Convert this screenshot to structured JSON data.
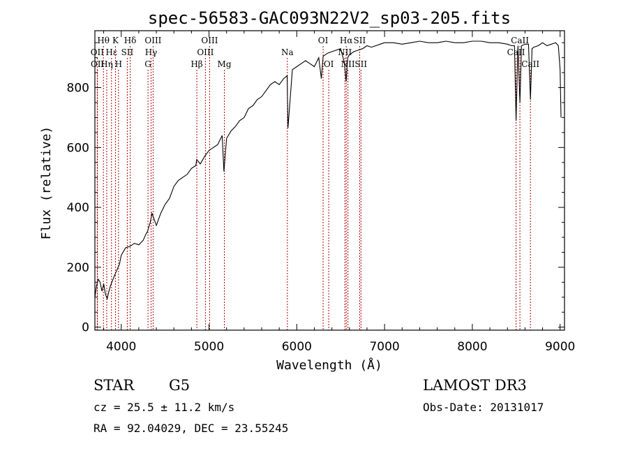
{
  "chart_data": {
    "type": "line",
    "title": "spec-56583-GAC093N22V2_sp03-205.fits",
    "xlabel": "Wavelength (Å)",
    "ylabel": "Flux (relative)",
    "xlim": [
      3700,
      9050
    ],
    "ylim": [
      -10,
      990
    ],
    "x_ticks": [
      {
        "value": 4000,
        "label": "4000"
      },
      {
        "value": 5000,
        "label": "5000"
      },
      {
        "value": 6000,
        "label": "6000"
      },
      {
        "value": 7000,
        "label": "7000"
      },
      {
        "value": 8000,
        "label": "8000"
      },
      {
        "value": 9000,
        "label": "9000"
      }
    ],
    "y_ticks": [
      {
        "value": 0,
        "label": "0"
      },
      {
        "value": 200,
        "label": "200"
      },
      {
        "value": 400,
        "label": "400"
      },
      {
        "value": 600,
        "label": "600"
      },
      {
        "value": 800,
        "label": "800"
      }
    ],
    "spectrum": {
      "x": [
        3700,
        3720,
        3740,
        3760,
        3780,
        3800,
        3820,
        3840,
        3860,
        3880,
        3900,
        3920,
        3950,
        3980,
        4000,
        4050,
        4100,
        4150,
        4200,
        4250,
        4280,
        4300,
        4330,
        4350,
        4400,
        4450,
        4500,
        4550,
        4600,
        4650,
        4700,
        4750,
        4800,
        4850,
        4860,
        4900,
        4950,
        5000,
        5050,
        5100,
        5150,
        5170,
        5200,
        5250,
        5300,
        5350,
        5400,
        5450,
        5500,
        5550,
        5600,
        5650,
        5700,
        5750,
        5800,
        5850,
        5890,
        5900,
        5950,
        6000,
        6050,
        6100,
        6150,
        6200,
        6250,
        6280,
        6300,
        6350,
        6400,
        6450,
        6500,
        6540,
        6563,
        6580,
        6600,
        6650,
        6700,
        6750,
        6800,
        6850,
        6900,
        6950,
        7000,
        7100,
        7200,
        7300,
        7400,
        7500,
        7600,
        7700,
        7800,
        7900,
        8000,
        8100,
        8200,
        8300,
        8400,
        8450,
        8480,
        8498,
        8520,
        8542,
        8560,
        8600,
        8640,
        8662,
        8680,
        8700,
        8750,
        8800,
        8850,
        8900,
        8950,
        8980,
        9000,
        9010
      ],
      "y": [
        100,
        140,
        160,
        150,
        120,
        145,
        110,
        95,
        120,
        140,
        155,
        170,
        190,
        210,
        240,
        265,
        270,
        280,
        275,
        290,
        310,
        320,
        350,
        380,
        340,
        380,
        410,
        430,
        470,
        490,
        500,
        510,
        530,
        540,
        560,
        545,
        570,
        590,
        600,
        610,
        640,
        520,
        630,
        655,
        670,
        690,
        700,
        730,
        740,
        760,
        770,
        790,
        810,
        820,
        810,
        830,
        840,
        665,
        860,
        870,
        880,
        890,
        880,
        870,
        900,
        830,
        905,
        915,
        920,
        925,
        930,
        885,
        820,
        900,
        910,
        920,
        925,
        930,
        940,
        935,
        940,
        945,
        950,
        950,
        945,
        950,
        955,
        950,
        950,
        955,
        950,
        950,
        955,
        955,
        950,
        950,
        945,
        940,
        940,
        690,
        940,
        750,
        940,
        945,
        945,
        760,
        930,
        935,
        940,
        950,
        940,
        945,
        950,
        940,
        860,
        700
      ]
    },
    "lines": [
      {
        "label": "Hθ",
        "x": 3797,
        "row": 1
      },
      {
        "label": "OII",
        "x": 3727,
        "row": 2
      },
      {
        "label": "OII",
        "x": 3729,
        "row": 3
      },
      {
        "label": "Hε",
        "x": 3889,
        "row": 2
      },
      {
        "label": "Hη",
        "x": 3835,
        "row": 3
      },
      {
        "label": "K",
        "x": 3934,
        "row": 1
      },
      {
        "label": "H",
        "x": 3969,
        "row": 3
      },
      {
        "label": "SII",
        "x": 4069,
        "row": 2
      },
      {
        "label": "Hδ",
        "x": 4102,
        "row": 1
      },
      {
        "label": "OIII",
        "x": 4363,
        "row": 1
      },
      {
        "label": "Hγ",
        "x": 4340,
        "row": 2
      },
      {
        "label": "G",
        "x": 4305,
        "row": 3
      },
      {
        "label": "Hβ",
        "x": 4861,
        "row": 3
      },
      {
        "label": "OIII",
        "x": 5007,
        "row": 1
      },
      {
        "label": "OIII",
        "x": 4959,
        "row": 2
      },
      {
        "label": "Mg",
        "x": 5175,
        "row": 3
      },
      {
        "label": "Na",
        "x": 5893,
        "row": 2
      },
      {
        "label": "OI",
        "x": 6300,
        "row": 1
      },
      {
        "label": "OI",
        "x": 6364,
        "row": 3
      },
      {
        "label": "Hα",
        "x": 6563,
        "row": 1
      },
      {
        "label": "NII",
        "x": 6548,
        "row": 2
      },
      {
        "label": "NII",
        "x": 6583,
        "row": 3
      },
      {
        "label": "SII",
        "x": 6716,
        "row": 1
      },
      {
        "label": "SII",
        "x": 6731,
        "row": 3
      },
      {
        "label": "CaII",
        "x": 8542,
        "row": 1
      },
      {
        "label": "CaII",
        "x": 8498,
        "row": 2
      },
      {
        "label": "CaII",
        "x": 8662,
        "row": 3
      }
    ],
    "grid": false
  },
  "info": {
    "object_class": "STAR",
    "subclass": "G5",
    "survey": "LAMOST DR3",
    "redshift": "cz = 25.5 ± 11.2 km/s",
    "obs_date": "Obs-Date: 20131017",
    "coords": "RA =  92.04029, DEC =  23.55245"
  },
  "colors": {
    "line_marker": "#b00000",
    "spectrum": "#000000"
  }
}
